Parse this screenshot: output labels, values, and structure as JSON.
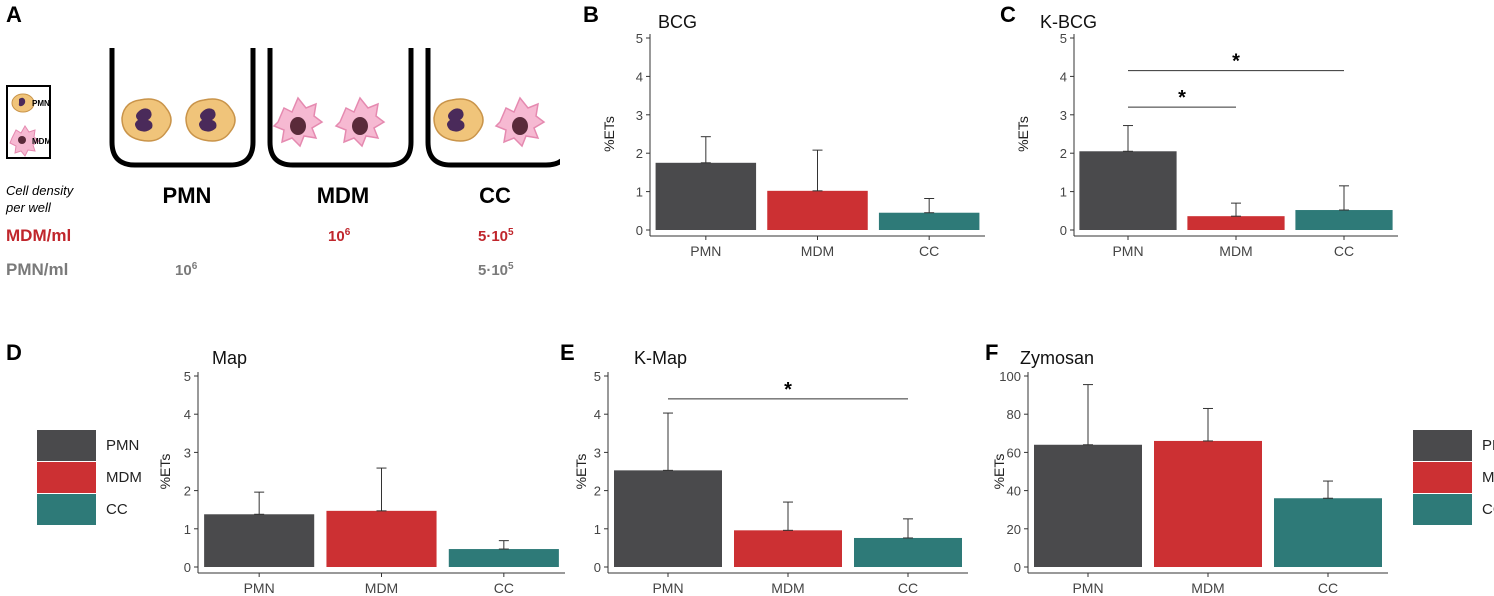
{
  "panel_letters": {
    "a": "A",
    "b": "B",
    "c": "C",
    "d": "D",
    "e": "E",
    "f": "F"
  },
  "colors": {
    "PMN": "#4a4a4c",
    "MDM": "#cc3033",
    "CC": "#2e7a78",
    "pmn_cell": "#f0c47a",
    "mdm_cell": "#f6b9d2",
    "nucleus": "#4a2a5a",
    "mdm_row": "#c0262c",
    "pmn_row": "#7a7a7a"
  },
  "panel_a": {
    "icon_legend": {
      "pmn": "PMN",
      "mdm": "MDM"
    },
    "wells": [
      {
        "label": "PMN"
      },
      {
        "label": "MDM"
      },
      {
        "label": "CC"
      }
    ],
    "cell_density_line1": "Cell density",
    "cell_density_line2": "per well",
    "mdm_row_label": "MDM/ml",
    "pmn_row_label": "PMN/ml",
    "mdm_mdm_base": "10",
    "mdm_mdm_exp": "6",
    "mdm_cc_base": "5·10",
    "mdm_cc_exp": "5",
    "pmn_pmn_base": "10",
    "pmn_pmn_exp": "6",
    "pmn_cc_base": "5·10",
    "pmn_cc_exp": "5"
  },
  "legend": [
    {
      "label": "PMN"
    },
    {
      "label": "MDM"
    },
    {
      "label": "CC"
    }
  ],
  "chart_data": [
    {
      "id": "B",
      "type": "bar",
      "title": "BCG",
      "ylabel": "%ETs",
      "ylim": [
        0,
        5
      ],
      "yticks": [
        0,
        1,
        2,
        3,
        4,
        5
      ],
      "categories": [
        "PMN",
        "MDM",
        "CC"
      ],
      "values": [
        1.75,
        1.02,
        0.45
      ],
      "errors": [
        0.68,
        1.06,
        0.37
      ],
      "significance": []
    },
    {
      "id": "C",
      "type": "bar",
      "title": "K-BCG",
      "ylabel": "%ETs",
      "ylim": [
        0,
        5
      ],
      "yticks": [
        0,
        1,
        2,
        3,
        4,
        5
      ],
      "categories": [
        "PMN",
        "MDM",
        "CC"
      ],
      "values": [
        2.05,
        0.36,
        0.52
      ],
      "errors": [
        0.67,
        0.34,
        0.63
      ],
      "significance": [
        {
          "from": 0,
          "to": 1,
          "y": 3.2,
          "label": "*"
        },
        {
          "from": 0,
          "to": 2,
          "y": 4.15,
          "label": "*"
        }
      ]
    },
    {
      "id": "D",
      "type": "bar",
      "title": "Map",
      "ylabel": "%ETs",
      "ylim": [
        0,
        5
      ],
      "yticks": [
        0,
        1,
        2,
        3,
        4,
        5
      ],
      "categories": [
        "PMN",
        "MDM",
        "CC"
      ],
      "values": [
        1.38,
        1.47,
        0.47
      ],
      "errors": [
        0.58,
        1.12,
        0.22
      ],
      "significance": []
    },
    {
      "id": "E",
      "type": "bar",
      "title": "K-Map",
      "ylabel": "%ETs",
      "ylim": [
        0,
        5
      ],
      "yticks": [
        0,
        1,
        2,
        3,
        4,
        5
      ],
      "categories": [
        "PMN",
        "MDM",
        "CC"
      ],
      "values": [
        2.53,
        0.96,
        0.76
      ],
      "errors": [
        1.5,
        0.74,
        0.5
      ],
      "significance": [
        {
          "from": 0,
          "to": 2,
          "y": 4.4,
          "label": "*"
        }
      ]
    },
    {
      "id": "F",
      "type": "bar",
      "title": "Zymosan",
      "ylabel": "%ETs",
      "ylim": [
        0,
        100
      ],
      "yticks": [
        0,
        20,
        40,
        60,
        80,
        100
      ],
      "categories": [
        "PMN",
        "MDM",
        "CC"
      ],
      "values": [
        64,
        66,
        36
      ],
      "errors": [
        31.5,
        17,
        9
      ],
      "significance": []
    }
  ]
}
